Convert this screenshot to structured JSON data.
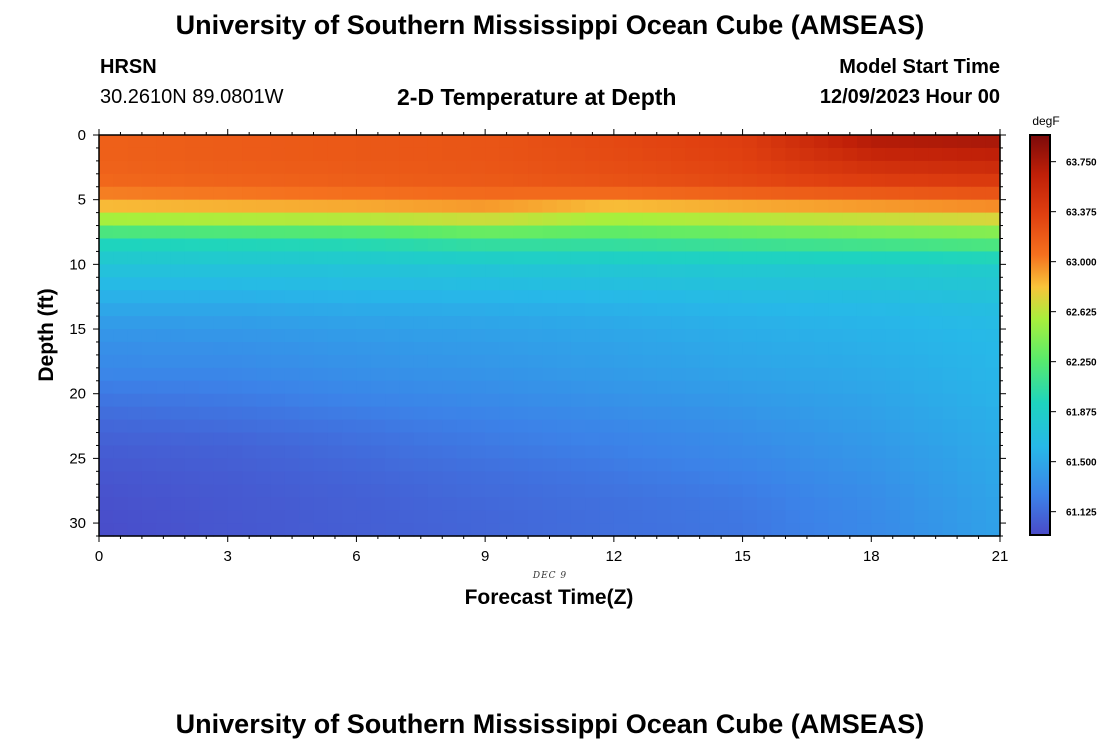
{
  "header": {
    "title": "University of Southern Mississippi Ocean Cube (AMSEAS)",
    "station": "HRSN",
    "coords": "30.2610N  89.0801W",
    "plot_title": "2-D Temperature at Depth",
    "model_label": "Model Start Time",
    "model_time": "12/09/2023 Hour 00"
  },
  "footer": {
    "title": "University of Southern Mississippi Ocean Cube (AMSEAS)"
  },
  "chart_data": {
    "type": "heatmap",
    "title": "2-D Temperature at Depth",
    "xlabel": "Forecast Time(Z)",
    "ylabel": "Depth (ft)",
    "x_annotation": "DEC 9",
    "xlim": [
      0,
      21
    ],
    "ylim": [
      0,
      31
    ],
    "y_inverted": true,
    "x_ticks": [
      0,
      3,
      6,
      9,
      12,
      15,
      18,
      21
    ],
    "y_ticks": [
      0,
      5,
      10,
      15,
      20,
      25,
      30
    ],
    "x_tick_labels": [
      "0",
      "3",
      "6",
      "9",
      "12",
      "15",
      "18",
      "21"
    ],
    "y_tick_labels": [
      "0",
      "5",
      "10",
      "15",
      "20",
      "25",
      "30"
    ],
    "colorbar": {
      "unit": "degF",
      "range": [
        60.95,
        63.95
      ],
      "ticks": [
        61.125,
        61.5,
        61.875,
        62.25,
        62.625,
        63.0,
        63.375,
        63.75
      ],
      "tick_labels": [
        "61.125",
        "61.500",
        "61.875",
        "62.250",
        "62.625",
        "63.000",
        "63.375",
        "63.750"
      ]
    },
    "profile_times": [
      0,
      3,
      6,
      9,
      12,
      15,
      18,
      21
    ],
    "profile_depths": [
      0,
      2,
      4,
      6,
      8,
      10,
      12,
      14,
      16,
      18,
      20,
      22,
      24,
      26,
      28,
      30,
      31
    ],
    "temperature_profiles": [
      [
        63.15,
        63.15,
        63.1,
        62.75,
        62.0,
        61.75,
        61.6,
        61.45,
        61.35,
        61.3,
        61.2,
        61.12,
        61.06,
        61.02,
        60.99,
        60.97,
        60.97
      ],
      [
        63.18,
        63.18,
        63.12,
        62.78,
        62.02,
        61.75,
        61.6,
        61.45,
        61.36,
        61.3,
        61.22,
        61.15,
        61.08,
        61.05,
        61.03,
        61.02,
        61.02
      ],
      [
        63.2,
        63.2,
        63.15,
        62.8,
        62.05,
        61.76,
        61.62,
        61.48,
        61.4,
        61.35,
        61.28,
        61.2,
        61.14,
        61.1,
        61.07,
        61.06,
        61.06
      ],
      [
        63.22,
        63.22,
        63.18,
        62.85,
        62.15,
        61.78,
        61.63,
        61.5,
        61.43,
        61.38,
        61.32,
        61.25,
        61.2,
        61.15,
        61.12,
        61.1,
        61.1
      ],
      [
        63.3,
        63.28,
        63.22,
        62.7,
        62.15,
        61.8,
        61.65,
        61.53,
        61.47,
        61.43,
        61.37,
        61.3,
        61.25,
        61.2,
        61.16,
        61.15,
        61.15
      ],
      [
        63.38,
        63.35,
        63.28,
        62.75,
        62.2,
        61.82,
        61.68,
        61.57,
        61.52,
        61.48,
        61.42,
        61.36,
        61.31,
        61.26,
        61.21,
        61.19,
        61.19
      ],
      [
        63.75,
        63.55,
        63.32,
        62.8,
        62.25,
        61.82,
        61.7,
        61.6,
        61.56,
        61.52,
        61.48,
        61.44,
        61.4,
        61.36,
        61.32,
        61.3,
        61.3
      ],
      [
        63.8,
        63.6,
        63.35,
        62.85,
        62.3,
        61.85,
        61.75,
        61.65,
        61.62,
        61.6,
        61.58,
        61.55,
        61.52,
        61.5,
        61.48,
        61.46,
        61.46
      ]
    ]
  }
}
